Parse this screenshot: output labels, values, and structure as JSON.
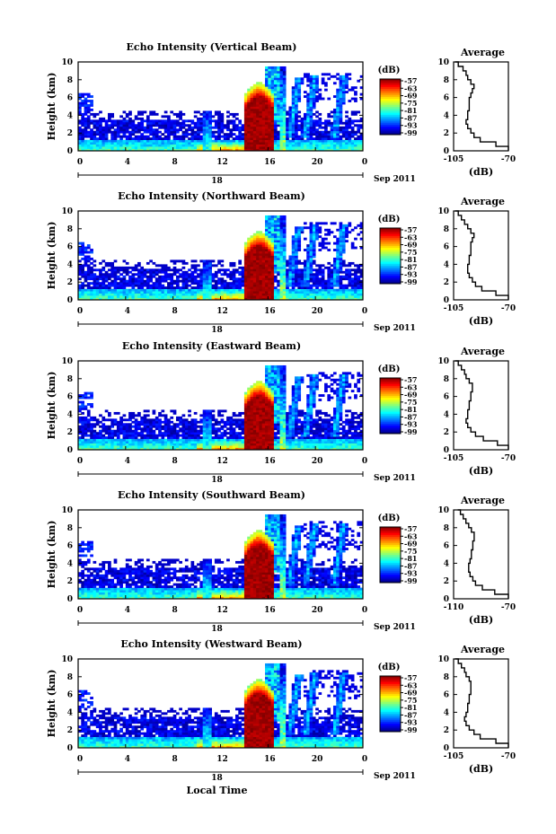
{
  "chart_data": [
    {
      "type": "heatmap",
      "title": "Echo Intensity (Vertical Beam)",
      "ylabel": "Height (km)",
      "xlabel": "",
      "date_label": "18",
      "month_label": "Sep 2011",
      "x_ticks": [
        "0",
        "4",
        "8",
        "12",
        "16",
        "20",
        "0"
      ],
      "y_ticks": [
        "0",
        "2",
        "4",
        "6",
        "8",
        "10"
      ],
      "xlim": [
        0,
        24
      ],
      "ylim": [
        0,
        10
      ],
      "colorbar": {
        "unit": "(dB)",
        "ticks": [
          "-57",
          "-63",
          "-69",
          "-75",
          "-81",
          "-87",
          "-93",
          "-99"
        ],
        "range": [
          -99,
          -57
        ]
      },
      "average": {
        "title": "Average",
        "xlabel": "(dB)",
        "x_ticks": [
          "-105",
          "-70"
        ],
        "xlim": [
          -105,
          -70
        ],
        "heights": [
          0,
          0.5,
          1,
          1.5,
          2,
          2.5,
          3,
          3.5,
          4,
          4.5,
          5,
          5.5,
          6,
          6.5,
          7,
          7.5,
          8,
          8.5,
          9,
          9.5,
          10
        ],
        "values": [
          -70,
          -78,
          -88,
          -92,
          -94,
          -96,
          -97,
          -96,
          -96,
          -95,
          -95,
          -95,
          -94,
          -93,
          -92,
          -94,
          -96,
          -97,
          -99,
          -102,
          -104
        ]
      }
    },
    {
      "type": "heatmap",
      "title": "Echo Intensity (Northward Beam)",
      "ylabel": "Height (km)",
      "xlabel": "",
      "date_label": "18",
      "month_label": "Sep 2011",
      "x_ticks": [
        "0",
        "4",
        "8",
        "12",
        "16",
        "20",
        "0"
      ],
      "y_ticks": [
        "0",
        "2",
        "4",
        "6",
        "8",
        "10"
      ],
      "xlim": [
        0,
        24
      ],
      "ylim": [
        0,
        10
      ],
      "colorbar": {
        "unit": "(dB)",
        "ticks": [
          "-57",
          "-63",
          "-69",
          "-75",
          "-81",
          "-87",
          "-93",
          "-99"
        ],
        "range": [
          -99,
          -57
        ]
      },
      "average": {
        "title": "Average",
        "xlabel": "(dB)",
        "x_ticks": [
          "-105",
          "-70"
        ],
        "xlim": [
          -105,
          -70
        ],
        "heights": [
          0,
          0.5,
          1,
          1.5,
          2,
          2.5,
          3,
          3.5,
          4,
          4.5,
          5,
          5.5,
          6,
          6.5,
          7,
          7.5,
          8,
          8.5,
          9,
          9.5,
          10
        ],
        "values": [
          -70,
          -78,
          -87,
          -91,
          -93,
          -95,
          -96,
          -96,
          -95,
          -95,
          -94,
          -94,
          -94,
          -93,
          -92,
          -94,
          -96,
          -98,
          -100,
          -102,
          -104
        ]
      }
    },
    {
      "type": "heatmap",
      "title": "Echo Intensity (Eastward Beam)",
      "ylabel": "Height (km)",
      "xlabel": "",
      "date_label": "18",
      "month_label": "Sep 2011",
      "x_ticks": [
        "0",
        "4",
        "8",
        "12",
        "16",
        "20",
        "0"
      ],
      "y_ticks": [
        "0",
        "2",
        "4",
        "6",
        "8",
        "10"
      ],
      "xlim": [
        0,
        24
      ],
      "ylim": [
        0,
        10
      ],
      "colorbar": {
        "unit": "(dB)",
        "ticks": [
          "-57",
          "-63",
          "-69",
          "-75",
          "-81",
          "-87",
          "-93",
          "-99"
        ],
        "range": [
          -99,
          -57
        ]
      },
      "average": {
        "title": "Average",
        "xlabel": "(dB)",
        "x_ticks": [
          "-105",
          "-70"
        ],
        "xlim": [
          -105,
          -70
        ],
        "heights": [
          0,
          0.5,
          1,
          1.5,
          2,
          2.5,
          3,
          3.5,
          4,
          4.5,
          5,
          5.5,
          6,
          6.5,
          7,
          7.5,
          8,
          8.5,
          9,
          9.5,
          10
        ],
        "values": [
          -70,
          -77,
          -86,
          -91,
          -94,
          -96,
          -97,
          -96,
          -96,
          -95,
          -95,
          -94,
          -94,
          -93,
          -93,
          -95,
          -97,
          -98,
          -100,
          -102,
          -104
        ]
      }
    },
    {
      "type": "heatmap",
      "title": "Echo Intensity (Southward Beam)",
      "ylabel": "Height (km)",
      "xlabel": "",
      "date_label": "18",
      "month_label": "Sep 2011",
      "x_ticks": [
        "0",
        "4",
        "8",
        "12",
        "16",
        "20",
        "0"
      ],
      "y_ticks": [
        "0",
        "2",
        "4",
        "6",
        "8",
        "10"
      ],
      "xlim": [
        0,
        24
      ],
      "ylim": [
        0,
        10
      ],
      "colorbar": {
        "unit": "(dB)",
        "ticks": [
          "-57",
          "-63",
          "-69",
          "-75",
          "-81",
          "-87",
          "-93",
          "-99"
        ],
        "range": [
          -99,
          -57
        ]
      },
      "average": {
        "title": "Average",
        "xlabel": "(dB)",
        "x_ticks": [
          "-110",
          "-70"
        ],
        "xlim": [
          -110,
          -70
        ],
        "heights": [
          0,
          0.5,
          1,
          1.5,
          2,
          2.5,
          3,
          3.5,
          4,
          4.5,
          5,
          5.5,
          6,
          6.5,
          7,
          7.5,
          8,
          8.5,
          9,
          9.5,
          10
        ],
        "values": [
          -70,
          -80,
          -89,
          -94,
          -96,
          -98,
          -99,
          -99,
          -98,
          -97,
          -97,
          -96,
          -96,
          -95,
          -95,
          -97,
          -99,
          -101,
          -103,
          -105,
          -107
        ]
      }
    },
    {
      "type": "heatmap",
      "title": "Echo Intensity (Westward Beam)",
      "ylabel": "Height (km)",
      "xlabel": "Local Time",
      "date_label": "18",
      "month_label": "Sep 2011",
      "x_ticks": [
        "0",
        "4",
        "8",
        "12",
        "16",
        "20",
        "0"
      ],
      "y_ticks": [
        "0",
        "2",
        "4",
        "6",
        "8",
        "10"
      ],
      "xlim": [
        0,
        24
      ],
      "ylim": [
        0,
        10
      ],
      "colorbar": {
        "unit": "(dB)",
        "ticks": [
          "-57",
          "-63",
          "-69",
          "-75",
          "-81",
          "-87",
          "-93",
          "-99"
        ],
        "range": [
          -99,
          -57
        ]
      },
      "average": {
        "title": "Average",
        "xlabel": "(dB)",
        "x_ticks": [
          "-105",
          "-70"
        ],
        "xlim": [
          -105,
          -70
        ],
        "heights": [
          0,
          0.5,
          1,
          1.5,
          2,
          2.5,
          3,
          3.5,
          4,
          4.5,
          5,
          5.5,
          6,
          6.5,
          7,
          7.5,
          8,
          8.5,
          9,
          9.5,
          10
        ],
        "values": [
          -70,
          -78,
          -88,
          -92,
          -95,
          -97,
          -98,
          -97,
          -96,
          -96,
          -95,
          -95,
          -94,
          -94,
          -94,
          -95,
          -97,
          -98,
          -100,
          -102,
          -104
        ]
      }
    }
  ]
}
